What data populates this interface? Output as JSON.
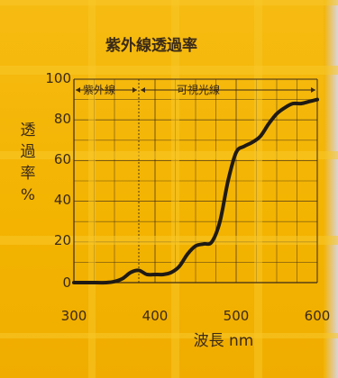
{
  "chart_data": {
    "type": "line",
    "title": "紫外線透過率",
    "ylabel": "透過率%",
    "xlabel": "波長 nm",
    "x_ticks": [
      "300",
      "400",
      "500",
      "600"
    ],
    "y_ticks": [
      "0",
      "20",
      "40",
      "60",
      "80",
      "100"
    ],
    "xlim": [
      300,
      600
    ],
    "ylim": [
      0,
      100
    ],
    "regions": [
      {
        "label": "紫外線",
        "from": 300,
        "to": 380
      },
      {
        "label": "可視光線",
        "from": 380,
        "to": 600
      }
    ],
    "series": [
      {
        "x": [
          300,
          320,
          340,
          350,
          360,
          370,
          380,
          390,
          400,
          410,
          420,
          430,
          440,
          450,
          460,
          470,
          480,
          490,
          500,
          510,
          520,
          530,
          540,
          550,
          560,
          570,
          580,
          590,
          600
        ],
        "y": [
          0,
          0,
          0,
          0.5,
          2,
          5,
          6,
          4,
          4,
          4,
          5,
          8,
          14,
          18,
          19,
          20,
          30,
          50,
          64,
          67,
          69,
          72,
          78,
          83,
          86,
          88,
          88,
          89,
          90
        ]
      }
    ],
    "grid": true,
    "line_color": "#1f1a14"
  }
}
